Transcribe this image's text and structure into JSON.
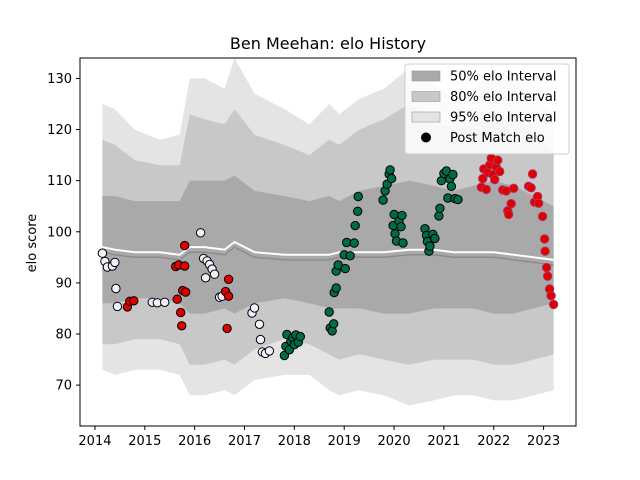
{
  "chart_data": {
    "type": "scatter",
    "title": "Ben Meehan: elo History",
    "xlabel": "",
    "ylabel": "elo score",
    "xlim": [
      2013.7,
      2023.65
    ],
    "ylim": [
      62,
      134
    ],
    "x_ticks": [
      2014,
      2015,
      2016,
      2017,
      2018,
      2019,
      2020,
      2021,
      2022,
      2023
    ],
    "y_ticks": [
      70,
      80,
      90,
      100,
      110,
      120,
      130
    ],
    "grid": false,
    "legend_position": "top-right",
    "legend": [
      {
        "label": "50% elo Interval",
        "type": "patch",
        "color": "#a9a9a9"
      },
      {
        "label": "80% elo Interval",
        "type": "patch",
        "color": "#c8c8c8"
      },
      {
        "label": "95% elo Interval",
        "type": "patch",
        "color": "#e4e4e4"
      },
      {
        "label": "Post Match elo",
        "type": "marker",
        "color": "#000000"
      }
    ],
    "colors": {
      "band50": "#a9a9a9",
      "band80": "#c8c8c8",
      "band95": "#e4e4e4",
      "grey_line": "#8c8c8c",
      "white_line": "#ffffff",
      "point_white": "#f2f2ff",
      "point_red": "#e00000",
      "point_green": "#006b44",
      "point_edge": "#000000",
      "point_edge_red": "#b03060"
    },
    "bands": {
      "x": [
        2014.15,
        2014.4,
        2014.8,
        2015.3,
        2015.7,
        2015.9,
        2016.2,
        2016.6,
        2016.8,
        2017.2,
        2017.8,
        2018.3,
        2018.7,
        2018.9,
        2019.3,
        2019.8,
        2020.3,
        2020.8,
        2021.2,
        2021.6,
        2022.0,
        2022.4,
        2022.8,
        2023.2
      ],
      "upper95": [
        125,
        124,
        120,
        118,
        119,
        130,
        130,
        128,
        134,
        127,
        124,
        121,
        125,
        123,
        126,
        128,
        132,
        129,
        126,
        128,
        132,
        130,
        126,
        123
      ],
      "upper80": [
        118,
        117,
        114,
        113,
        113,
        123,
        122,
        121,
        124,
        119,
        117,
        115,
        118,
        117,
        120,
        122,
        125,
        122,
        120,
        121,
        123,
        122,
        119,
        116
      ],
      "upper50": [
        107,
        107,
        106,
        106,
        106,
        110,
        110,
        110,
        111,
        108,
        107,
        106,
        107,
        106,
        108,
        109,
        110,
        109,
        108,
        109,
        110,
        109,
        107,
        105
      ],
      "lower50": [
        86,
        86,
        87,
        87,
        86,
        84,
        84,
        85,
        84,
        86,
        87,
        86,
        85,
        85,
        85,
        84,
        84,
        85,
        85,
        85,
        84,
        84,
        85,
        86
      ],
      "lower80": [
        78,
        78,
        79,
        79,
        78,
        74,
        74,
        75,
        74,
        77,
        79,
        78,
        76,
        75,
        76,
        75,
        74,
        75,
        75,
        75,
        74,
        74,
        75,
        76
      ],
      "lower95": [
        73,
        72,
        73,
        73,
        72,
        68,
        68,
        69,
        68,
        71,
        72,
        72,
        69,
        68,
        69,
        68,
        66,
        67,
        68,
        68,
        67,
        67,
        68,
        69
      ],
      "center": [
        97,
        96.5,
        96,
        96,
        95.5,
        97,
        97,
        96.5,
        98,
        96,
        95.5,
        95.5,
        95.5,
        96,
        96,
        96,
        96.5,
        96.5,
        96,
        96,
        96,
        95.5,
        95,
        94.5
      ]
    },
    "points": [
      {
        "x": 2014.15,
        "y": 95.8,
        "c": "white"
      },
      {
        "x": 2014.2,
        "y": 94.2,
        "c": "white"
      },
      {
        "x": 2014.25,
        "y": 93.1,
        "c": "white"
      },
      {
        "x": 2014.35,
        "y": 93.3,
        "c": "white"
      },
      {
        "x": 2014.4,
        "y": 94.0,
        "c": "white"
      },
      {
        "x": 2014.42,
        "y": 88.9,
        "c": "white"
      },
      {
        "x": 2014.45,
        "y": 85.4,
        "c": "white"
      },
      {
        "x": 2014.65,
        "y": 85.3,
        "c": "red"
      },
      {
        "x": 2014.7,
        "y": 86.4,
        "c": "red"
      },
      {
        "x": 2014.78,
        "y": 86.5,
        "c": "red"
      },
      {
        "x": 2015.15,
        "y": 86.2,
        "c": "white"
      },
      {
        "x": 2015.25,
        "y": 86.1,
        "c": "white"
      },
      {
        "x": 2015.4,
        "y": 86.2,
        "c": "white"
      },
      {
        "x": 2015.62,
        "y": 93.2,
        "c": "red"
      },
      {
        "x": 2015.65,
        "y": 86.8,
        "c": "red"
      },
      {
        "x": 2015.68,
        "y": 93.5,
        "c": "red"
      },
      {
        "x": 2015.72,
        "y": 84.2,
        "c": "red"
      },
      {
        "x": 2015.74,
        "y": 81.6,
        "c": "red"
      },
      {
        "x": 2015.76,
        "y": 88.5,
        "c": "red"
      },
      {
        "x": 2015.8,
        "y": 93.3,
        "c": "red"
      },
      {
        "x": 2015.82,
        "y": 88.2,
        "c": "red"
      },
      {
        "x": 2015.8,
        "y": 97.3,
        "c": "red"
      },
      {
        "x": 2016.12,
        "y": 99.8,
        "c": "white"
      },
      {
        "x": 2016.18,
        "y": 94.8,
        "c": "white"
      },
      {
        "x": 2016.22,
        "y": 91.0,
        "c": "white"
      },
      {
        "x": 2016.25,
        "y": 94.3,
        "c": "white"
      },
      {
        "x": 2016.3,
        "y": 93.6,
        "c": "white"
      },
      {
        "x": 2016.35,
        "y": 92.7,
        "c": "white"
      },
      {
        "x": 2016.4,
        "y": 91.7,
        "c": "white"
      },
      {
        "x": 2016.5,
        "y": 87.2,
        "c": "white"
      },
      {
        "x": 2016.55,
        "y": 87.4,
        "c": "white"
      },
      {
        "x": 2016.62,
        "y": 88.3,
        "c": "red"
      },
      {
        "x": 2016.68,
        "y": 87.4,
        "c": "red"
      },
      {
        "x": 2016.68,
        "y": 90.7,
        "c": "red"
      },
      {
        "x": 2016.65,
        "y": 81.1,
        "c": "red"
      },
      {
        "x": 2017.15,
        "y": 84.1,
        "c": "white"
      },
      {
        "x": 2017.2,
        "y": 85.1,
        "c": "white"
      },
      {
        "x": 2017.3,
        "y": 81.9,
        "c": "white"
      },
      {
        "x": 2017.32,
        "y": 78.9,
        "c": "white"
      },
      {
        "x": 2017.36,
        "y": 76.5,
        "c": "white"
      },
      {
        "x": 2017.42,
        "y": 76.2,
        "c": "white"
      },
      {
        "x": 2017.5,
        "y": 76.7,
        "c": "white"
      },
      {
        "x": 2017.8,
        "y": 75.8,
        "c": "green"
      },
      {
        "x": 2017.83,
        "y": 77.6,
        "c": "green"
      },
      {
        "x": 2017.85,
        "y": 79.9,
        "c": "green"
      },
      {
        "x": 2017.9,
        "y": 76.9,
        "c": "green"
      },
      {
        "x": 2017.93,
        "y": 78.6,
        "c": "green"
      },
      {
        "x": 2017.97,
        "y": 79.3,
        "c": "green"
      },
      {
        "x": 2018.0,
        "y": 77.9,
        "c": "green"
      },
      {
        "x": 2018.03,
        "y": 79.8,
        "c": "green"
      },
      {
        "x": 2018.08,
        "y": 78.4,
        "c": "green"
      },
      {
        "x": 2018.12,
        "y": 79.5,
        "c": "green"
      },
      {
        "x": 2018.7,
        "y": 84.3,
        "c": "green"
      },
      {
        "x": 2018.72,
        "y": 81.2,
        "c": "green"
      },
      {
        "x": 2018.76,
        "y": 80.6,
        "c": "green"
      },
      {
        "x": 2018.79,
        "y": 82.0,
        "c": "green"
      },
      {
        "x": 2018.8,
        "y": 88.1,
        "c": "green"
      },
      {
        "x": 2018.84,
        "y": 89.0,
        "c": "green"
      },
      {
        "x": 2018.84,
        "y": 92.3,
        "c": "green"
      },
      {
        "x": 2018.88,
        "y": 93.5,
        "c": "green"
      },
      {
        "x": 2019.0,
        "y": 95.5,
        "c": "green"
      },
      {
        "x": 2019.02,
        "y": 92.8,
        "c": "green"
      },
      {
        "x": 2019.05,
        "y": 97.9,
        "c": "green"
      },
      {
        "x": 2019.12,
        "y": 95.3,
        "c": "green"
      },
      {
        "x": 2019.2,
        "y": 97.8,
        "c": "green"
      },
      {
        "x": 2019.22,
        "y": 101.2,
        "c": "green"
      },
      {
        "x": 2019.27,
        "y": 104.0,
        "c": "green"
      },
      {
        "x": 2019.28,
        "y": 106.9,
        "c": "green"
      },
      {
        "x": 2019.78,
        "y": 106.2,
        "c": "green"
      },
      {
        "x": 2019.82,
        "y": 108.0,
        "c": "green"
      },
      {
        "x": 2019.86,
        "y": 109.3,
        "c": "green"
      },
      {
        "x": 2019.9,
        "y": 111.3,
        "c": "green"
      },
      {
        "x": 2019.92,
        "y": 112.1,
        "c": "green"
      },
      {
        "x": 2019.95,
        "y": 110.4,
        "c": "green"
      },
      {
        "x": 2019.98,
        "y": 101.2,
        "c": "green"
      },
      {
        "x": 2020.0,
        "y": 103.4,
        "c": "green"
      },
      {
        "x": 2020.02,
        "y": 99.6,
        "c": "green"
      },
      {
        "x": 2020.05,
        "y": 98.2,
        "c": "green"
      },
      {
        "x": 2020.1,
        "y": 102.1,
        "c": "green"
      },
      {
        "x": 2020.14,
        "y": 101.0,
        "c": "green"
      },
      {
        "x": 2020.16,
        "y": 103.2,
        "c": "green"
      },
      {
        "x": 2020.18,
        "y": 97.8,
        "c": "green"
      },
      {
        "x": 2020.62,
        "y": 100.6,
        "c": "green"
      },
      {
        "x": 2020.65,
        "y": 99.3,
        "c": "green"
      },
      {
        "x": 2020.67,
        "y": 98.1,
        "c": "green"
      },
      {
        "x": 2020.7,
        "y": 96.2,
        "c": "green"
      },
      {
        "x": 2020.72,
        "y": 97.2,
        "c": "green"
      },
      {
        "x": 2020.78,
        "y": 99.5,
        "c": "green"
      },
      {
        "x": 2020.82,
        "y": 98.7,
        "c": "green"
      },
      {
        "x": 2020.9,
        "y": 103.1,
        "c": "green"
      },
      {
        "x": 2020.92,
        "y": 104.6,
        "c": "green"
      },
      {
        "x": 2020.95,
        "y": 110.0,
        "c": "green"
      },
      {
        "x": 2021.0,
        "y": 111.4,
        "c": "green"
      },
      {
        "x": 2021.05,
        "y": 111.9,
        "c": "green"
      },
      {
        "x": 2021.08,
        "y": 106.6,
        "c": "green"
      },
      {
        "x": 2021.12,
        "y": 110.3,
        "c": "green"
      },
      {
        "x": 2021.15,
        "y": 108.9,
        "c": "green"
      },
      {
        "x": 2021.18,
        "y": 111.2,
        "c": "green"
      },
      {
        "x": 2021.22,
        "y": 106.5,
        "c": "green"
      },
      {
        "x": 2021.28,
        "y": 106.3,
        "c": "green"
      },
      {
        "x": 2021.75,
        "y": 108.7,
        "c": "red"
      },
      {
        "x": 2021.78,
        "y": 110.4,
        "c": "red"
      },
      {
        "x": 2021.8,
        "y": 112.3,
        "c": "red"
      },
      {
        "x": 2021.85,
        "y": 108.3,
        "c": "red"
      },
      {
        "x": 2021.88,
        "y": 111.6,
        "c": "red"
      },
      {
        "x": 2021.92,
        "y": 113.1,
        "c": "red"
      },
      {
        "x": 2021.95,
        "y": 114.4,
        "c": "red"
      },
      {
        "x": 2021.98,
        "y": 111.2,
        "c": "red"
      },
      {
        "x": 2022.02,
        "y": 110.2,
        "c": "red"
      },
      {
        "x": 2022.05,
        "y": 112.7,
        "c": "red"
      },
      {
        "x": 2022.08,
        "y": 114.0,
        "c": "red"
      },
      {
        "x": 2022.12,
        "y": 111.8,
        "c": "red"
      },
      {
        "x": 2022.18,
        "y": 108.2,
        "c": "red"
      },
      {
        "x": 2022.25,
        "y": 108.0,
        "c": "red"
      },
      {
        "x": 2022.28,
        "y": 104.1,
        "c": "red"
      },
      {
        "x": 2022.3,
        "y": 103.4,
        "c": "red"
      },
      {
        "x": 2022.35,
        "y": 105.5,
        "c": "red"
      },
      {
        "x": 2022.4,
        "y": 108.5,
        "c": "red"
      },
      {
        "x": 2022.7,
        "y": 108.9,
        "c": "red"
      },
      {
        "x": 2022.75,
        "y": 108.6,
        "c": "red"
      },
      {
        "x": 2022.78,
        "y": 111.3,
        "c": "red"
      },
      {
        "x": 2022.82,
        "y": 105.8,
        "c": "red"
      },
      {
        "x": 2022.88,
        "y": 106.9,
        "c": "red"
      },
      {
        "x": 2022.9,
        "y": 105.6,
        "c": "red"
      },
      {
        "x": 2022.98,
        "y": 103.0,
        "c": "red"
      },
      {
        "x": 2023.02,
        "y": 98.6,
        "c": "red"
      },
      {
        "x": 2023.03,
        "y": 96.2,
        "c": "red"
      },
      {
        "x": 2023.06,
        "y": 93.0,
        "c": "red"
      },
      {
        "x": 2023.08,
        "y": 91.3,
        "c": "red"
      },
      {
        "x": 2023.12,
        "y": 88.8,
        "c": "red"
      },
      {
        "x": 2023.15,
        "y": 87.5,
        "c": "red"
      },
      {
        "x": 2023.2,
        "y": 85.8,
        "c": "red"
      }
    ]
  }
}
